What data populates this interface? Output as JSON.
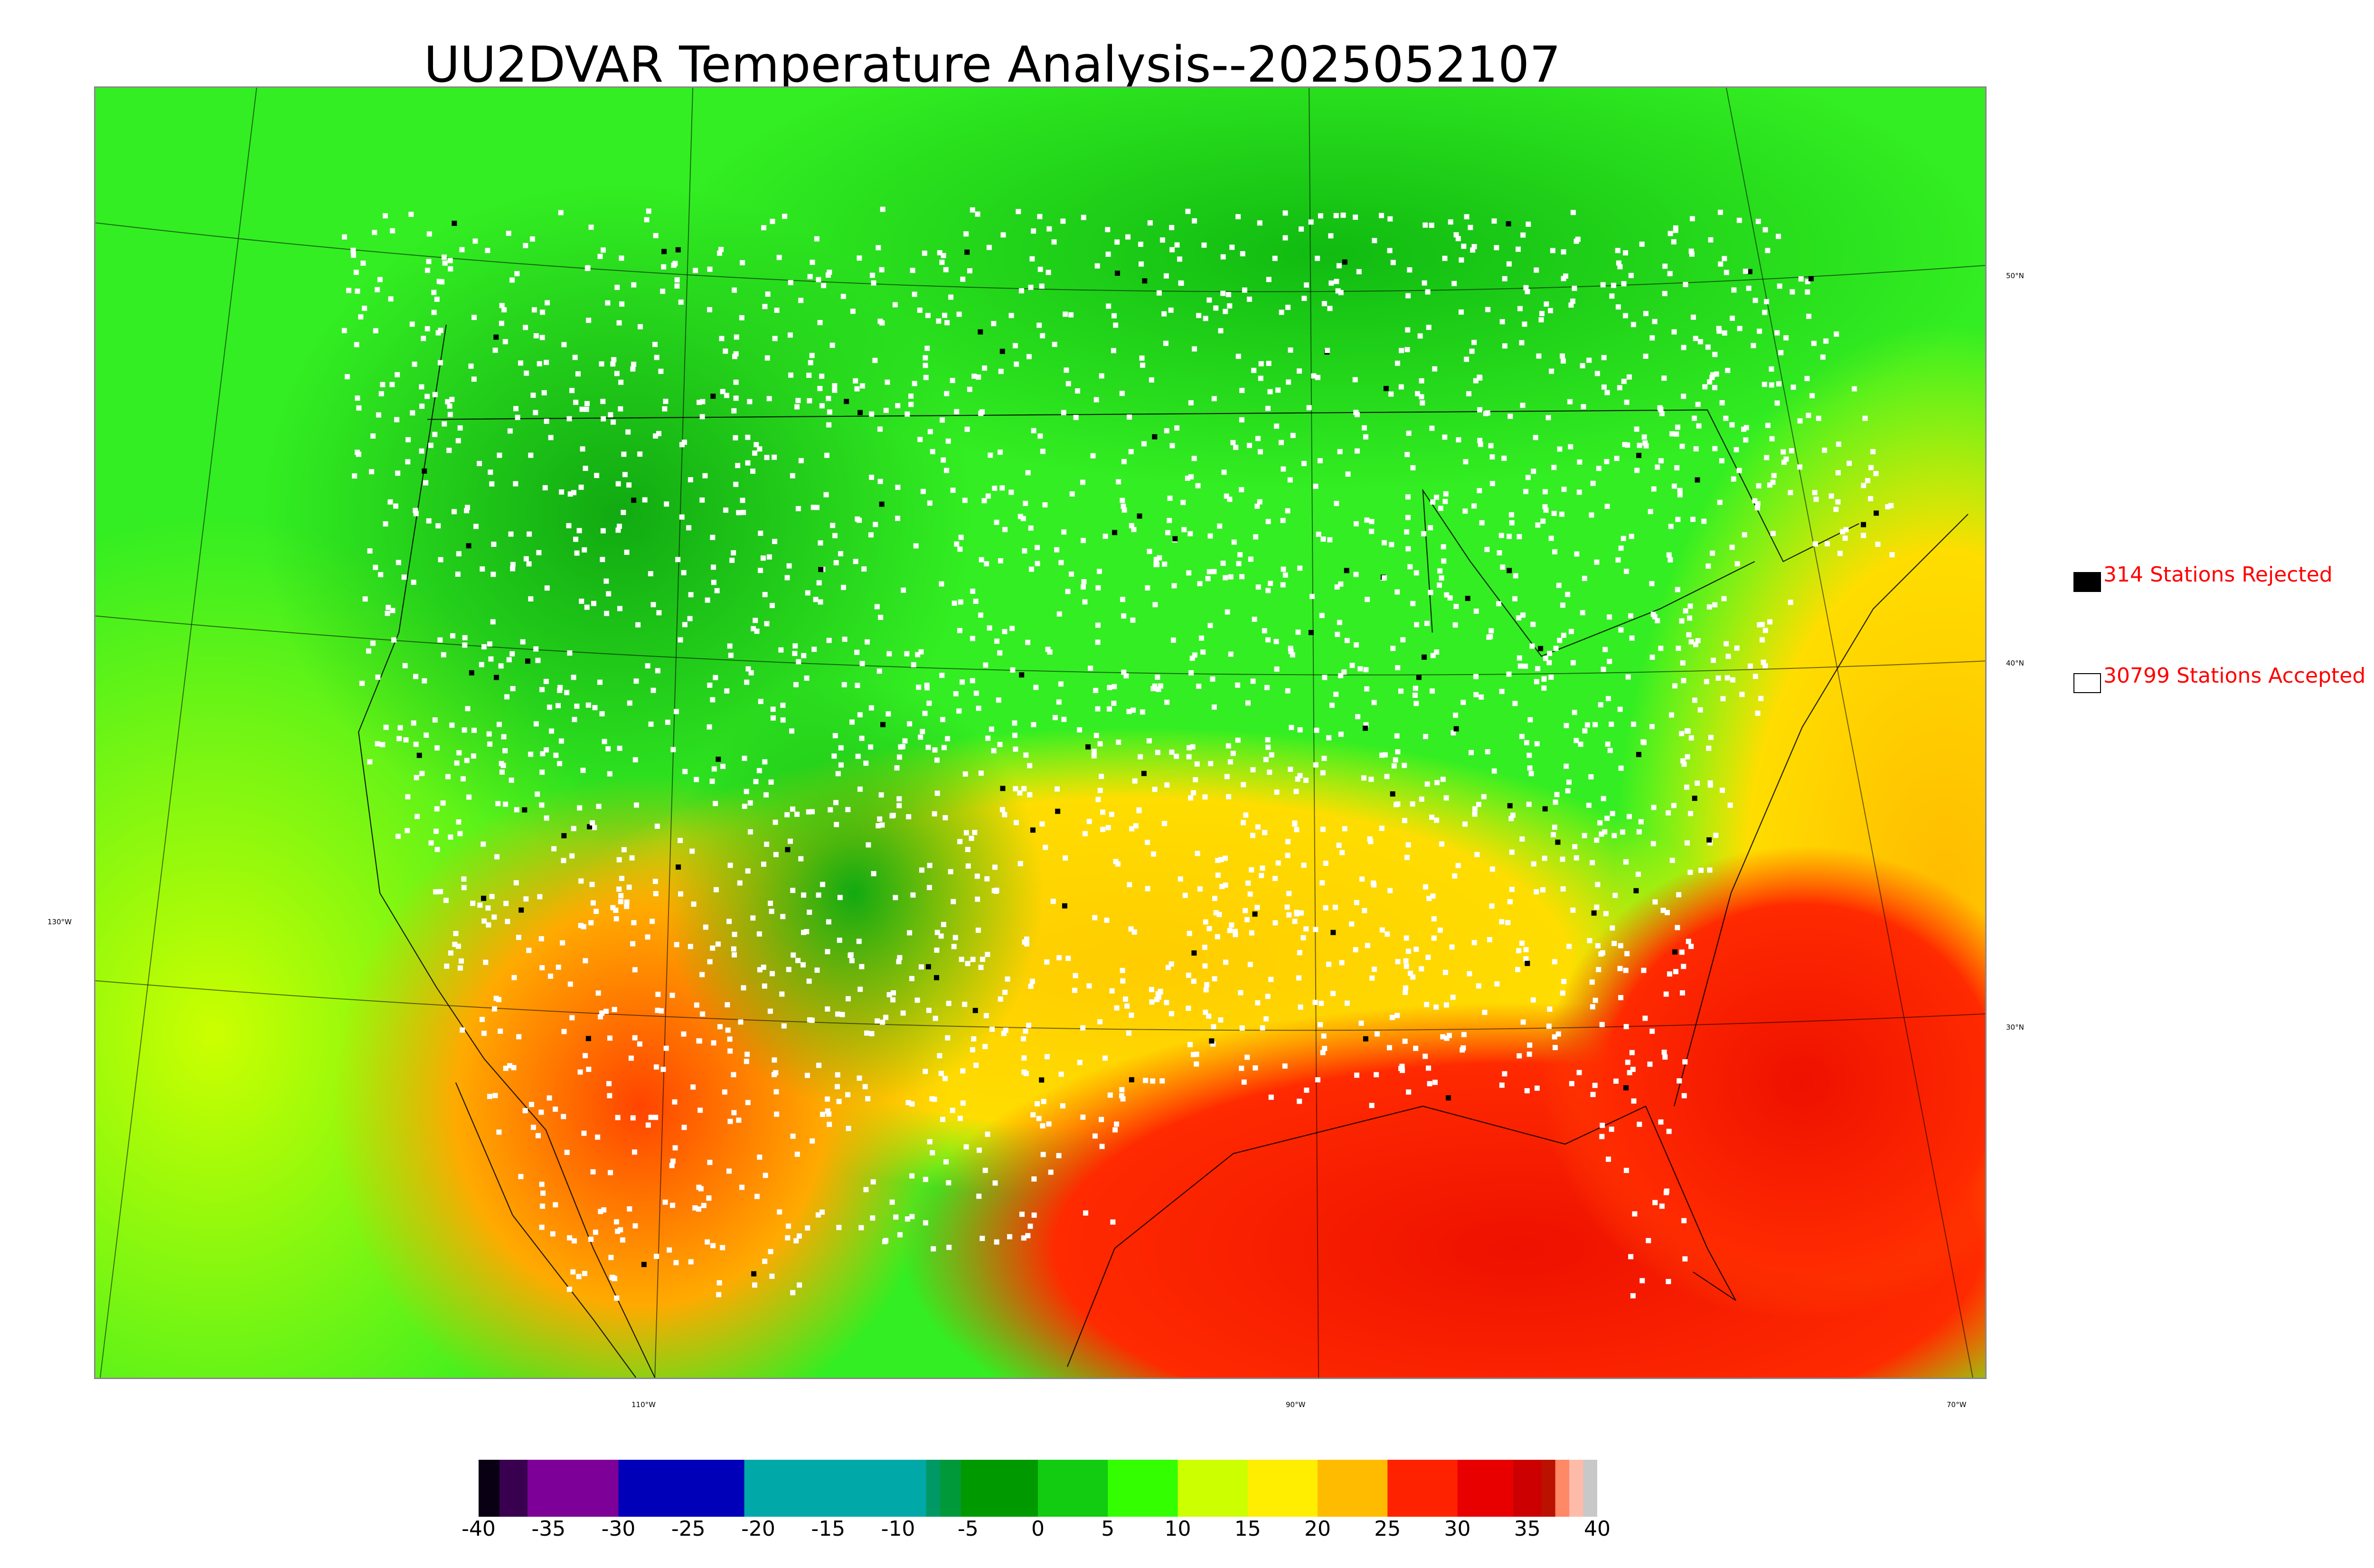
{
  "title": "UU2DVAR Temperature Analysis--2025052107",
  "map": {
    "lat_labels": [
      "50°N",
      "40°N",
      "30°N"
    ],
    "lon_labels": [
      "130°W",
      "110°W",
      "90°W",
      "70°W"
    ]
  },
  "legend": {
    "rejected": {
      "label": "314 Stations Rejected",
      "color": "#000000"
    },
    "accepted": {
      "label": "30799 Stations Accepted",
      "color": "#ffffff"
    }
  },
  "colorbar": {
    "ticks": [
      "-40",
      "-35",
      "-30",
      "-25",
      "-20",
      "-15",
      "-10",
      "-5",
      "0",
      "5",
      "10",
      "15",
      "20",
      "25",
      "30",
      "35",
      "40"
    ],
    "range": [
      -40,
      40
    ],
    "segments": [
      {
        "from": -40,
        "to": -38.5,
        "color": "#0a0014"
      },
      {
        "from": -38.5,
        "to": -36.5,
        "color": "#3a0050"
      },
      {
        "from": -36.5,
        "to": -30,
        "color": "#7d0099"
      },
      {
        "from": -30,
        "to": -21,
        "color": "#0000b8"
      },
      {
        "from": -21,
        "to": -8,
        "color": "#00a8a8"
      },
      {
        "from": -8,
        "to": -7,
        "color": "#009966"
      },
      {
        "from": -7,
        "to": -5.5,
        "color": "#00993a"
      },
      {
        "from": -5.5,
        "to": 0,
        "color": "#009900"
      },
      {
        "from": 0,
        "to": 5,
        "color": "#11cc11"
      },
      {
        "from": 5,
        "to": 10,
        "color": "#33ff00"
      },
      {
        "from": 10,
        "to": 15,
        "color": "#ccff00"
      },
      {
        "from": 15,
        "to": 20,
        "color": "#ffee00"
      },
      {
        "from": 20,
        "to": 25,
        "color": "#ffbb00"
      },
      {
        "from": 25,
        "to": 30,
        "color": "#ff2200"
      },
      {
        "from": 30,
        "to": 34,
        "color": "#e80000"
      },
      {
        "from": 34,
        "to": 36,
        "color": "#cc0000"
      },
      {
        "from": 36,
        "to": 37,
        "color": "#bb1100"
      },
      {
        "from": 37,
        "to": 38,
        "color": "#ff8866"
      },
      {
        "from": 38,
        "to": 39,
        "color": "#ffbbaa"
      },
      {
        "from": 39,
        "to": 40,
        "color": "#c8c8c8"
      }
    ]
  }
}
